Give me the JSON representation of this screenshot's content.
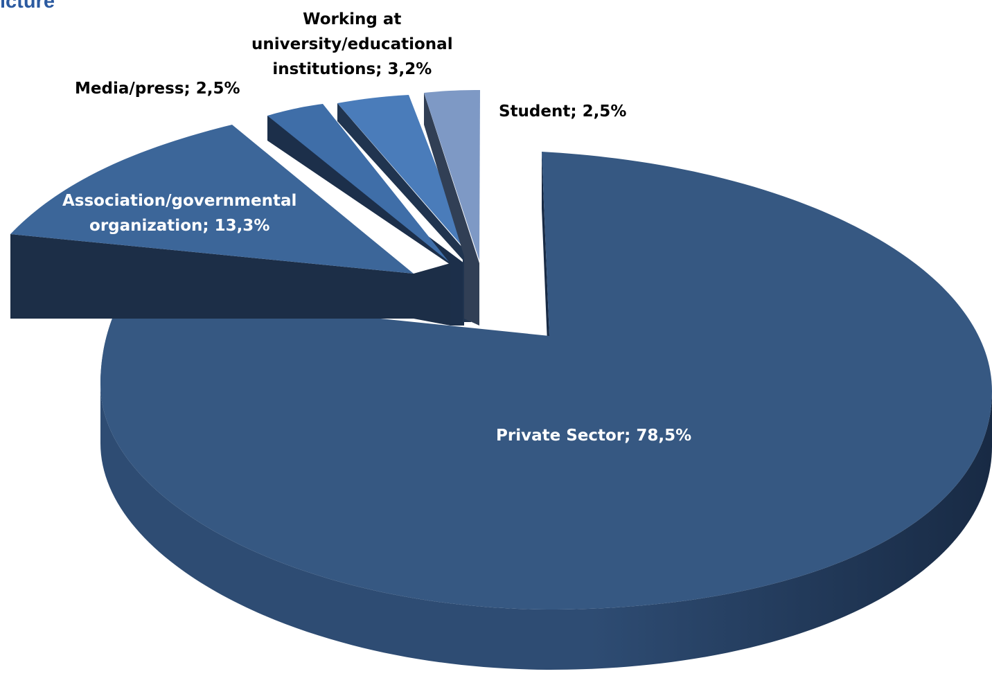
{
  "page": {
    "title_fragment": "icture"
  },
  "colors": {
    "private_top": "#365882",
    "private_side_light": "#2e4c73",
    "private_side_dark": "#182a44",
    "assoc_top": "#3c6699",
    "assoc_side": "#1c2e47",
    "media_top": "#3f6ea8",
    "media_side": "#1c2f4a",
    "university_top": "#4a7cba",
    "university_side": "#20344f",
    "student_top": "#7e99c5",
    "student_side": "#313f55"
  },
  "chart_data": {
    "type": "pie",
    "title": "",
    "style": "3d-exploded",
    "slices": [
      {
        "name": "Private Sector",
        "value": 78.5,
        "label": "Private Sector; 78,5%"
      },
      {
        "name": "Association/governmental organization",
        "value": 13.3,
        "label": "Association/governmental organization; 13,3%"
      },
      {
        "name": "Media/press",
        "value": 2.5,
        "label": "Media/press; 2,5%"
      },
      {
        "name": "Working at university/educational institutions",
        "value": 3.2,
        "label": "Working at university/educational institutions; 3,2%"
      },
      {
        "name": "Student",
        "value": 2.5,
        "label": "Student; 2,5%"
      }
    ],
    "legend": "none"
  }
}
